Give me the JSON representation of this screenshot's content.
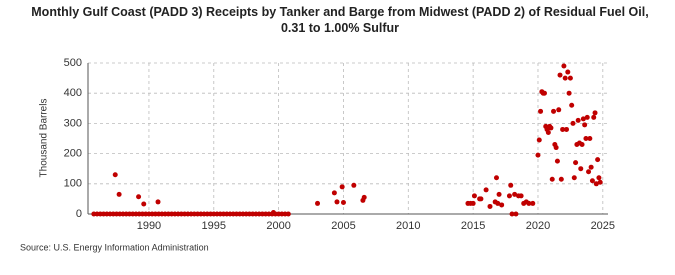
{
  "chart_data": {
    "type": "scatter",
    "title": "Monthly Gulf Coast (PADD 3) Receipts by Tanker and Barge from Midwest (PADD 2) of Residual Fuel Oil, 0.31 to 1.00% Sulfur",
    "y_label": "Thousand Barrels",
    "source": "Source: U.S. Energy Information Administration",
    "xlim": [
      1985.3,
      2025.4
    ],
    "xticks": [
      1990,
      1995,
      2000,
      2005,
      2010,
      2015,
      2020,
      2025
    ],
    "ylim": [
      0,
      500
    ],
    "yticks": [
      0,
      100,
      200,
      300,
      400,
      500
    ],
    "grid": true,
    "series": [
      {
        "color": "#c00000",
        "x": [
          1985.75,
          1986,
          1986.25,
          1986.5,
          1986.75,
          1987,
          1987.25,
          1987.5,
          1987.75,
          1988,
          1988.25,
          1988.5,
          1988.75,
          1989,
          1989.25,
          1989.5,
          1989.75,
          1990,
          1990.25,
          1990.5,
          1990.75,
          1991,
          1991.25,
          1991.5,
          1991.75,
          1992,
          1992.25,
          1992.5,
          1992.75,
          1993,
          1993.25,
          1993.5,
          1993.75,
          1994,
          1994.25,
          1994.5,
          1994.75,
          1995,
          1995.25,
          1995.5,
          1995.75,
          1996,
          1996.25,
          1996.5,
          1996.75,
          1997,
          1997.25,
          1997.5,
          1997.75,
          1998,
          1998.25,
          1998.5,
          1998.75,
          1999,
          1999.25,
          1999.5,
          1999.75,
          2000,
          2000.25,
          2000.5,
          2000.75,
          1987.4,
          1987.7,
          1989.2,
          1989.6,
          1990.7,
          1999.6,
          2003,
          2004.3,
          2004.5,
          2004.9,
          2005,
          2005.8,
          2006.5,
          2006.6,
          2014.6,
          2014.8,
          2015,
          2015.1,
          2015.5,
          2015.6,
          2016,
          2016.3,
          2016.7,
          2016.8,
          2016.9,
          2017,
          2017.2,
          2017.8,
          2017.9,
          2018,
          2018.2,
          2018.3,
          2018.5,
          2018.7,
          2018.9,
          2019.1,
          2019.3,
          2019.6,
          2020,
          2020.1,
          2020.2,
          2020.3,
          2020.4,
          2020.5,
          2020.6,
          2020.7,
          2020.8,
          2020.9,
          2021,
          2021.1,
          2021.2,
          2021.3,
          2021.4,
          2021.5,
          2021.6,
          2021.7,
          2021.8,
          2021.9,
          2022,
          2022.1,
          2022.2,
          2022.3,
          2022.4,
          2022.5,
          2022.6,
          2022.7,
          2022.8,
          2022.9,
          2023,
          2023.1,
          2023.2,
          2023.3,
          2023.4,
          2023.5,
          2023.6,
          2023.7,
          2023.8,
          2023.9,
          2024,
          2024.1,
          2024.2,
          2024.3,
          2024.4,
          2024.5,
          2024.6,
          2024.7,
          2024.8
        ],
        "values": [
          0,
          0,
          0,
          0,
          0,
          0,
          0,
          0,
          0,
          0,
          0,
          0,
          0,
          0,
          0,
          0,
          0,
          0,
          0,
          0,
          0,
          0,
          0,
          0,
          0,
          0,
          0,
          0,
          0,
          0,
          0,
          0,
          0,
          0,
          0,
          0,
          0,
          0,
          0,
          0,
          0,
          0,
          0,
          0,
          0,
          0,
          0,
          0,
          0,
          0,
          0,
          0,
          0,
          0,
          0,
          0,
          0,
          0,
          0,
          0,
          0,
          130,
          65,
          57,
          33,
          40,
          5,
          35,
          70,
          40,
          90,
          38,
          95,
          45,
          55,
          35,
          35,
          35,
          60,
          50,
          50,
          80,
          25,
          40,
          120,
          35,
          65,
          30,
          60,
          95,
          0,
          65,
          0,
          60,
          60,
          35,
          40,
          35,
          35,
          195,
          245,
          340,
          405,
          400,
          400,
          290,
          280,
          270,
          290,
          285,
          115,
          340,
          230,
          220,
          175,
          345,
          460,
          115,
          280,
          490,
          450,
          280,
          470,
          400,
          450,
          360,
          300,
          120,
          170,
          230,
          310,
          235,
          150,
          230,
          315,
          295,
          250,
          320,
          140,
          250,
          155,
          110,
          320,
          335,
          100,
          180,
          120,
          105
        ]
      }
    ]
  }
}
